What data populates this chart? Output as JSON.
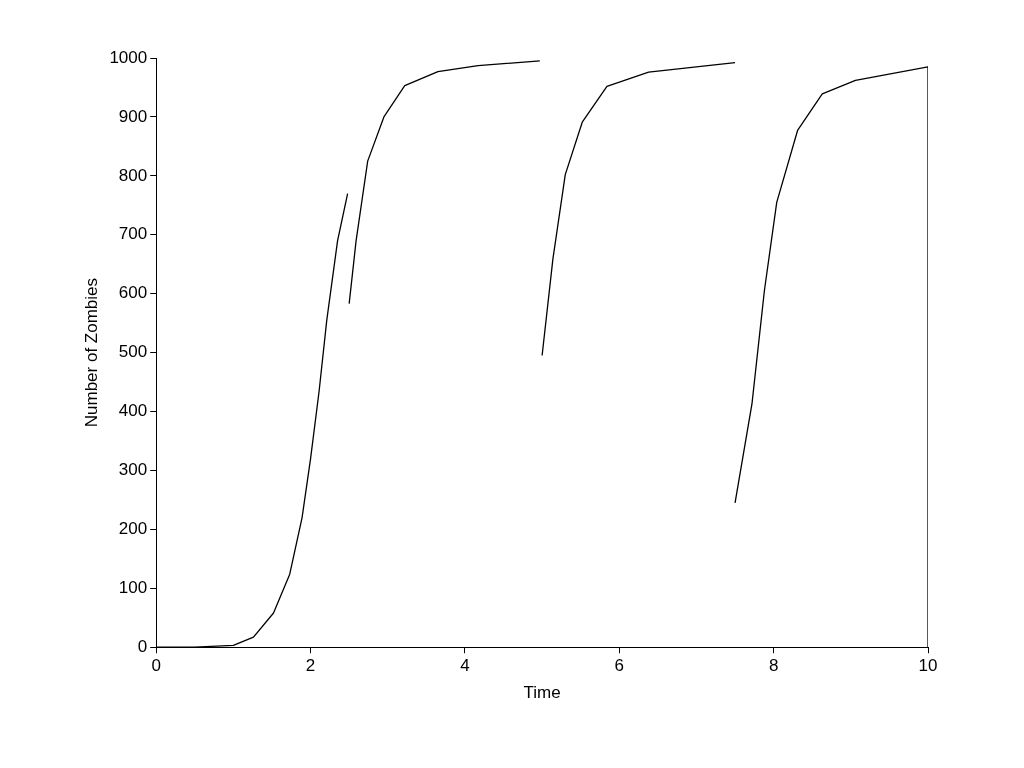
{
  "chart_data": {
    "type": "line",
    "xlabel": "Time",
    "ylabel": "Number of Zombies",
    "xlim": [
      0,
      10
    ],
    "ylim": [
      0,
      1000
    ],
    "xticks": [
      0,
      2,
      4,
      6,
      8,
      10
    ],
    "yticks": [
      0,
      100,
      200,
      300,
      400,
      500,
      600,
      700,
      800,
      900,
      1000
    ],
    "grid": false,
    "legend": false,
    "marker": "none",
    "line_style": "solid",
    "series": [
      {
        "color": "#000000",
        "x": [
          0,
          0.5,
          1,
          1.26,
          1.52,
          1.73,
          1.89,
          2.0,
          2.11,
          2.21,
          2.35,
          2.48
        ],
        "values": [
          0,
          0,
          3,
          17,
          58,
          124,
          220,
          320,
          434,
          555,
          690,
          770
        ]
      },
      {
        "color": "#000000",
        "x": [
          2.5,
          2.59,
          2.74,
          2.95,
          3.22,
          3.65,
          4.17,
          4.97
        ],
        "values": [
          583,
          690,
          825,
          900,
          953,
          977,
          987,
          995
        ]
      },
      {
        "color": "#000000",
        "x": [
          5.0,
          5.14,
          5.3,
          5.52,
          5.84,
          6.38,
          7.5
        ],
        "values": [
          495,
          659,
          802,
          891,
          952,
          976,
          992
        ]
      },
      {
        "color": "#000000",
        "x": [
          7.5,
          7.72,
          7.88,
          8.04,
          8.31,
          8.63,
          9.06,
          10,
          10
        ],
        "values": [
          245,
          414,
          605,
          755,
          877,
          939,
          962,
          985,
          0
        ]
      }
    ]
  }
}
